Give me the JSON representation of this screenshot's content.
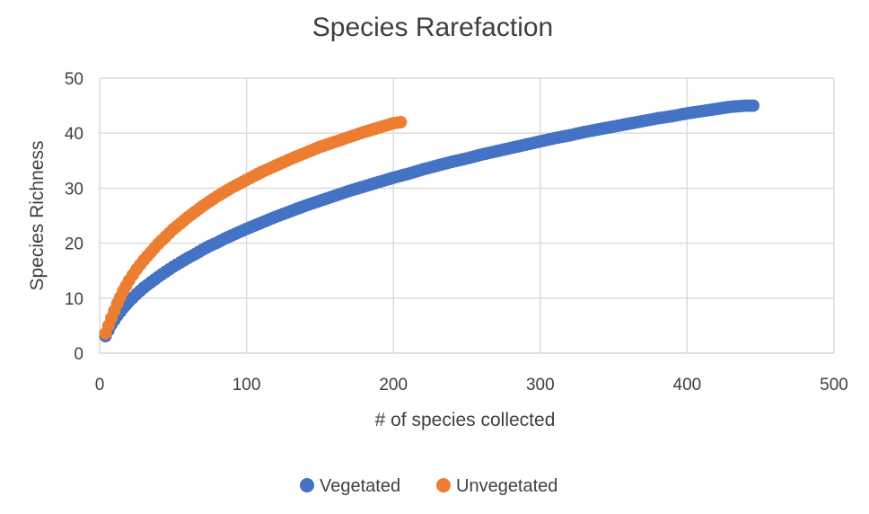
{
  "chart_data": {
    "type": "scatter",
    "title": "Species Rarefaction",
    "xlabel": "# of species collected",
    "ylabel": "Species Richness",
    "xlim": [
      0,
      500
    ],
    "ylim": [
      0,
      50
    ],
    "x_ticks": [
      "0",
      "100",
      "200",
      "300",
      "400",
      "500"
    ],
    "y_ticks": [
      "0",
      "10",
      "20",
      "30",
      "40",
      "50"
    ],
    "grid": true,
    "legend_position": "bottom",
    "series": [
      {
        "name": "Vegetated",
        "color": "#4472c4",
        "points": [
          [
            4,
            3.1
          ],
          [
            8,
            5.2
          ],
          [
            12,
            6.8
          ],
          [
            16,
            8.2
          ],
          [
            20,
            9.4
          ],
          [
            25,
            10.7
          ],
          [
            30,
            11.9
          ],
          [
            35,
            12.9
          ],
          [
            40,
            13.9
          ],
          [
            45,
            14.8
          ],
          [
            50,
            15.7
          ],
          [
            55,
            16.5
          ],
          [
            60,
            17.3
          ],
          [
            65,
            18.0
          ],
          [
            70,
            18.8
          ],
          [
            75,
            19.5
          ],
          [
            80,
            20.1
          ],
          [
            85,
            20.8
          ],
          [
            90,
            21.4
          ],
          [
            95,
            22.0
          ],
          [
            100,
            22.6
          ],
          [
            110,
            23.7
          ],
          [
            120,
            24.8
          ],
          [
            130,
            25.8
          ],
          [
            140,
            26.8
          ],
          [
            150,
            27.7
          ],
          [
            160,
            28.6
          ],
          [
            170,
            29.5
          ],
          [
            180,
            30.3
          ],
          [
            190,
            31.1
          ],
          [
            200,
            31.9
          ],
          [
            210,
            32.6
          ],
          [
            220,
            33.4
          ],
          [
            230,
            34.1
          ],
          [
            240,
            34.8
          ],
          [
            250,
            35.4
          ],
          [
            260,
            36.1
          ],
          [
            270,
            36.7
          ],
          [
            280,
            37.3
          ],
          [
            290,
            37.9
          ],
          [
            300,
            38.5
          ],
          [
            310,
            39.1
          ],
          [
            320,
            39.6
          ],
          [
            330,
            40.2
          ],
          [
            340,
            40.7
          ],
          [
            350,
            41.2
          ],
          [
            360,
            41.7
          ],
          [
            370,
            42.2
          ],
          [
            380,
            42.7
          ],
          [
            390,
            43.1
          ],
          [
            400,
            43.6
          ],
          [
            410,
            44.0
          ],
          [
            420,
            44.4
          ],
          [
            430,
            44.8
          ],
          [
            440,
            45.0
          ],
          [
            445,
            45.0
          ]
        ]
      },
      {
        "name": "Unvegetated",
        "color": "#ed7d31",
        "points": [
          [
            4,
            3.6
          ],
          [
            8,
            6.4
          ],
          [
            12,
            9.0
          ],
          [
            16,
            11.3
          ],
          [
            20,
            13.2
          ],
          [
            25,
            15.2
          ],
          [
            30,
            16.9
          ],
          [
            35,
            18.4
          ],
          [
            40,
            19.9
          ],
          [
            45,
            21.2
          ],
          [
            50,
            22.5
          ],
          [
            55,
            23.6
          ],
          [
            60,
            24.7
          ],
          [
            65,
            25.7
          ],
          [
            70,
            26.7
          ],
          [
            75,
            27.6
          ],
          [
            80,
            28.5
          ],
          [
            85,
            29.3
          ],
          [
            90,
            30.1
          ],
          [
            95,
            30.8
          ],
          [
            100,
            31.5
          ],
          [
            110,
            32.9
          ],
          [
            120,
            34.1
          ],
          [
            130,
            35.3
          ],
          [
            140,
            36.4
          ],
          [
            150,
            37.5
          ],
          [
            160,
            38.4
          ],
          [
            170,
            39.3
          ],
          [
            180,
            40.2
          ],
          [
            190,
            41.0
          ],
          [
            200,
            41.8
          ],
          [
            205,
            42.0
          ]
        ]
      }
    ]
  }
}
